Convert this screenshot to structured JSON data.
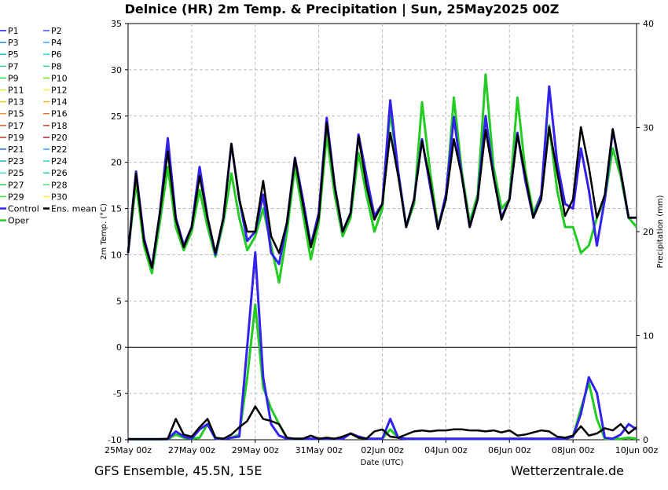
{
  "chart_data": {
    "type": "line",
    "title": "Delnice  (HR)  2m Temp. & Precipitation | Sun, 25May2025 00Z",
    "ylabel": "2m Temp. (°C)",
    "y2label": "Precipitation (mm)",
    "xlabel": "Date (UTC)",
    "footer_left": "GFS Ensemble, 45.5N, 15E",
    "footer_right": "Wetterzentrale.de",
    "ylim": [
      -10,
      35
    ],
    "y2lim": [
      0,
      40
    ],
    "yticks": [
      "-10",
      "-5",
      "0",
      "5",
      "10",
      "15",
      "20",
      "25",
      "30",
      "35"
    ],
    "y2ticks": [
      "0",
      "10",
      "20",
      "30",
      "40"
    ],
    "xticks": [
      "25May 00z",
      "27May 00z",
      "29May 00z",
      "31May 00z",
      "02Jun 00z",
      "04Jun 00z",
      "06Jun 00z",
      "08Jun 00z",
      "10Jun 00z"
    ],
    "x_start_date": "2025-05-25T00:00Z",
    "x_end_date": "2025-06-10T00:00Z",
    "grid": true,
    "legend_position": "left",
    "legend": [
      {
        "name": "P1",
        "color": "#1a1aff"
      },
      {
        "name": "P2",
        "color": "#3355ee"
      },
      {
        "name": "P3",
        "color": "#2288cc"
      },
      {
        "name": "P4",
        "color": "#33aaff"
      },
      {
        "name": "P5",
        "color": "#22bbcc"
      },
      {
        "name": "P6",
        "color": "#22ddcc"
      },
      {
        "name": "P7",
        "color": "#44ccaa"
      },
      {
        "name": "P8",
        "color": "#33dd88"
      },
      {
        "name": "P9",
        "color": "#22dd44"
      },
      {
        "name": "P10",
        "color": "#66ee22"
      },
      {
        "name": "P11",
        "color": "#ccee33"
      },
      {
        "name": "P12",
        "color": "#eeee44"
      },
      {
        "name": "P13",
        "color": "#eecc22"
      },
      {
        "name": "P14",
        "color": "#ffaa22"
      },
      {
        "name": "P15",
        "color": "#ee9933"
      },
      {
        "name": "P16",
        "color": "#dd7733"
      },
      {
        "name": "P17",
        "color": "#dd6633"
      },
      {
        "name": "P18",
        "color": "#cc4433"
      },
      {
        "name": "P19",
        "color": "#bb3333"
      },
      {
        "name": "P20",
        "color": "#aa2222"
      },
      {
        "name": "P21",
        "color": "#2266dd"
      },
      {
        "name": "P22",
        "color": "#3399ff"
      },
      {
        "name": "P23",
        "color": "#22aadd"
      },
      {
        "name": "P24",
        "color": "#33cccc"
      },
      {
        "name": "P25",
        "color": "#44ddbb"
      },
      {
        "name": "P26",
        "color": "#33ccaa"
      },
      {
        "name": "P27",
        "color": "#22cc66"
      },
      {
        "name": "P28",
        "color": "#44dd77"
      },
      {
        "name": "P29",
        "color": "#33ee33"
      },
      {
        "name": "P30",
        "color": "#ffee22"
      },
      {
        "name": "Control",
        "color": "#3322ee"
      },
      {
        "name": "Ens. mean",
        "color": "#000000"
      },
      {
        "name": "Oper",
        "color": "#22cc22"
      }
    ],
    "temp_mean_x": [
      "2025-05-25T00Z",
      "2025-05-25T06Z",
      "2025-05-25T12Z",
      "2025-05-25T18Z",
      "2025-05-26T00Z",
      "2025-05-26T06Z",
      "2025-05-26T12Z",
      "2025-05-26T18Z",
      "2025-05-27T00Z",
      "2025-05-27T06Z",
      "2025-05-27T12Z",
      "2025-05-27T18Z",
      "2025-05-28T00Z",
      "2025-05-28T06Z",
      "2025-05-28T12Z",
      "2025-05-28T18Z",
      "2025-05-29T00Z",
      "2025-05-29T06Z",
      "2025-05-29T12Z",
      "2025-05-29T18Z",
      "2025-05-30T00Z",
      "2025-05-30T06Z",
      "2025-05-30T12Z",
      "2025-05-30T18Z",
      "2025-05-31T00Z",
      "2025-05-31T06Z",
      "2025-05-31T12Z",
      "2025-05-31T18Z",
      "2025-06-01T00Z",
      "2025-06-01T06Z",
      "2025-06-01T12Z",
      "2025-06-01T18Z",
      "2025-06-02T00Z",
      "2025-06-02T06Z",
      "2025-06-02T12Z",
      "2025-06-02T18Z",
      "2025-06-03T00Z",
      "2025-06-03T06Z",
      "2025-06-03T12Z",
      "2025-06-03T18Z",
      "2025-06-04T00Z",
      "2025-06-04T06Z",
      "2025-06-04T12Z",
      "2025-06-04T18Z",
      "2025-06-05T00Z",
      "2025-06-05T06Z",
      "2025-06-05T12Z",
      "2025-06-05T18Z",
      "2025-06-06T00Z",
      "2025-06-06T06Z",
      "2025-06-06T12Z",
      "2025-06-06T18Z",
      "2025-06-07T00Z",
      "2025-06-07T06Z",
      "2025-06-07T12Z",
      "2025-06-07T18Z",
      "2025-06-08T00Z",
      "2025-06-08T06Z",
      "2025-06-08T12Z",
      "2025-06-08T18Z",
      "2025-06-09T00Z",
      "2025-06-09T06Z",
      "2025-06-09T12Z",
      "2025-06-09T18Z",
      "2025-06-10T00Z"
    ],
    "series": [
      {
        "name": "Ens. mean",
        "color": "#000000",
        "temp": [
          10.2,
          18.8,
          11.5,
          8.6,
          14.5,
          21.2,
          13.8,
          10.8,
          13.0,
          18.5,
          14.0,
          10.2,
          14.0,
          22.0,
          16.0,
          12.5,
          12.5,
          18.0,
          12.0,
          10.2,
          13.5,
          20.4,
          15.5,
          10.8,
          14.0,
          24.3,
          17.5,
          12.5,
          14.5,
          22.8,
          17.5,
          13.8,
          15.5,
          23.2,
          18.5,
          13.0,
          16.0,
          22.3,
          18.0,
          12.8,
          16.0,
          22.5,
          18.5,
          13.0,
          16.0,
          23.5,
          18.5,
          13.8,
          16.0,
          23.0,
          18.5,
          14.0,
          16.0,
          23.8,
          19.0,
          14.2,
          16.0,
          23.8,
          19.5,
          14.0,
          16.5,
          23.6,
          19.0,
          14.0,
          14.0
        ],
        "precip": [
          0.05,
          0.05,
          0.05,
          0.05,
          0.05,
          0.1,
          2.0,
          0.5,
          0.3,
          1.2,
          2.0,
          0.2,
          0.1,
          0.5,
          1.2,
          1.8,
          3.2,
          2.0,
          1.8,
          1.5,
          0.2,
          0.1,
          0.1,
          0.4,
          0.1,
          0.2,
          0.1,
          0.3,
          0.6,
          0.2,
          0.1,
          0.8,
          1.0,
          0.3,
          0.2,
          0.5,
          0.8,
          0.9,
          0.8,
          0.9,
          0.9,
          1.0,
          1.0,
          0.9,
          0.9,
          0.8,
          0.9,
          0.7,
          0.9,
          0.4,
          0.5,
          0.7,
          0.9,
          0.8,
          0.3,
          0.2,
          0.4,
          1.3,
          0.4,
          0.6,
          1.1,
          0.9,
          1.5,
          0.6,
          1.2
        ]
      },
      {
        "name": "Control",
        "color": "#3322ee",
        "temp": [
          10.2,
          19.0,
          11.8,
          8.6,
          14.5,
          22.6,
          14.0,
          11.0,
          13.0,
          19.5,
          14.0,
          10.0,
          14.0,
          22.0,
          16.0,
          11.5,
          12.5,
          16.5,
          10.2,
          9.0,
          13.5,
          20.5,
          16.0,
          11.0,
          14.5,
          24.8,
          17.5,
          12.5,
          14.5,
          23.0,
          18.5,
          14.2,
          15.5,
          26.7,
          19.0,
          13.0,
          16.0,
          22.5,
          17.5,
          12.8,
          16.5,
          24.9,
          18.5,
          13.0,
          16.0,
          25.0,
          18.5,
          14.0,
          16.0,
          23.2,
          18.0,
          14.0,
          16.5,
          28.2,
          20.0,
          15.5,
          15.0,
          21.5,
          17.0,
          11.0,
          16.0,
          23.5,
          19.0,
          14.0,
          14.0
        ],
        "precip": [
          0.05,
          0.05,
          0.05,
          0.05,
          0.05,
          0.05,
          0.8,
          0.3,
          0.1,
          1.0,
          1.5,
          0.1,
          0.1,
          0.2,
          0.3,
          9.0,
          18.0,
          6.0,
          1.5,
          0.4,
          0.1,
          0.1,
          0.1,
          0.1,
          0.1,
          0.1,
          0.1,
          0.1,
          0.6,
          0.3,
          0.1,
          0.1,
          0.1,
          2.0,
          0.2,
          0.1,
          0.1,
          0.1,
          0.1,
          0.1,
          0.1,
          0.1,
          0.1,
          0.1,
          0.1,
          0.1,
          0.1,
          0.1,
          0.1,
          0.1,
          0.1,
          0.1,
          0.1,
          0.1,
          0.1,
          0.1,
          0.3,
          2.5,
          6.0,
          4.5,
          0.2,
          0.1,
          0.5,
          1.5,
          1.0
        ]
      },
      {
        "name": "Oper",
        "color": "#22cc22",
        "temp": [
          10.2,
          17.8,
          11.0,
          8.0,
          13.5,
          19.5,
          13.0,
          10.5,
          12.5,
          17.0,
          13.0,
          9.8,
          13.5,
          18.8,
          14.0,
          10.5,
          12.0,
          15.0,
          11.0,
          7.0,
          12.5,
          19.5,
          14.5,
          9.5,
          13.5,
          23.0,
          16.5,
          12.0,
          14.0,
          21.0,
          16.5,
          12.5,
          15.0,
          25.5,
          19.0,
          13.0,
          15.5,
          26.5,
          19.0,
          13.0,
          16.0,
          27.0,
          19.0,
          13.5,
          16.5,
          29.5,
          19.5,
          15.0,
          16.0,
          27.0,
          19.0,
          14.5,
          16.5,
          24.0,
          17.0,
          13.0,
          13.0,
          10.2,
          11.0,
          14.0,
          16.0,
          21.5,
          18.5,
          14.0,
          13.0
        ],
        "precip": [
          0.05,
          0.05,
          0.05,
          0.05,
          0.05,
          0.05,
          0.5,
          0.2,
          0.1,
          0.2,
          1.5,
          0.1,
          0.1,
          0.2,
          0.5,
          6.0,
          13.0,
          5.0,
          3.0,
          1.5,
          0.1,
          0.1,
          0.1,
          0.1,
          0.1,
          0.1,
          0.1,
          0.1,
          0.6,
          0.2,
          0.1,
          0.1,
          0.1,
          1.0,
          0.2,
          0.1,
          0.1,
          0.1,
          0.1,
          0.1,
          0.1,
          0.1,
          0.1,
          0.1,
          0.1,
          0.1,
          0.1,
          0.1,
          0.1,
          0.1,
          0.1,
          0.1,
          0.1,
          0.1,
          0.1,
          0.1,
          0.3,
          3.0,
          5.5,
          2.0,
          0.1,
          0.1,
          0.1,
          0.2,
          0.1
        ]
      }
    ]
  }
}
